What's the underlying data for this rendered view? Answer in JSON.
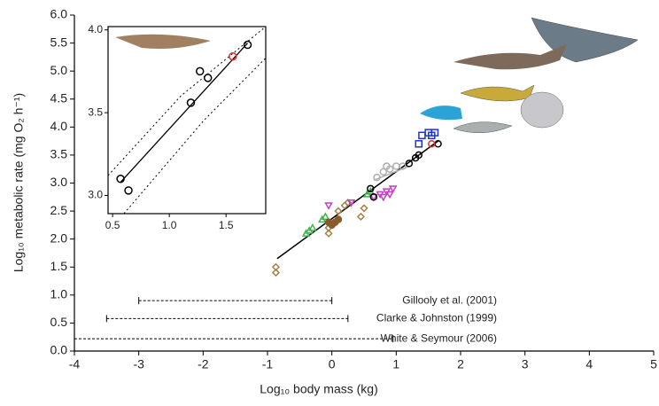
{
  "chart_data": {
    "type": "scatter",
    "x_label": "Log₁₀ body mass (kg)",
    "y_label": "Log₁₀ metabolic rate (mg O₂ h⁻¹)",
    "xlim": [
      -4,
      5
    ],
    "ylim": [
      0,
      6
    ],
    "xticks": [
      -4,
      -3,
      -2,
      -1,
      0,
      1,
      2,
      3,
      4,
      5
    ],
    "yticks": [
      {
        "value": 0,
        "label": "0.0"
      },
      {
        "value": 0.5,
        "label": "0.5"
      },
      {
        "value": 1,
        "label": "1.0"
      },
      {
        "value": 1.5,
        "label": "1.5"
      },
      {
        "value": 2,
        "label": "2.0"
      },
      {
        "value": 2.5,
        "label": "2.5"
      },
      {
        "value": 3,
        "label": "3.0"
      },
      {
        "value": 3.5,
        "label": "3.5"
      },
      {
        "value": 4,
        "label": "4.0"
      },
      {
        "value": 4.5,
        "label": "4.5"
      },
      {
        "value": 5,
        "label": "5.0"
      },
      {
        "value": 5.5,
        "label": "5.5"
      },
      {
        "value": 6,
        "label": "6.0"
      }
    ],
    "series": [
      {
        "marker": "diamond",
        "color": "#a0824a",
        "filled": false,
        "x": [
          -0.87,
          -0.87,
          -0.05,
          -0.05,
          0.1,
          0.2,
          0.25,
          0.45,
          0.5
        ],
        "y": [
          1.4,
          1.5,
          2.1,
          2.2,
          2.5,
          2.6,
          2.65,
          2.4,
          2.55
        ]
      },
      {
        "marker": "triangle-up",
        "color": "#3cb84a",
        "filled": false,
        "x": [
          -0.4,
          -0.35,
          -0.3,
          -0.15,
          -0.1,
          0.55,
          0.6
        ],
        "y": [
          2.1,
          2.15,
          2.2,
          2.35,
          2.4,
          2.8,
          2.85
        ]
      },
      {
        "marker": "circle",
        "color": "#8b5a2b",
        "filled": true,
        "x": [
          -0.05,
          0.0,
          0.05,
          0.1
        ],
        "y": [
          2.3,
          2.25,
          2.3,
          2.35
        ]
      },
      {
        "marker": "triangle-down",
        "color": "#c040c0",
        "filled": false,
        "x": [
          -0.05,
          0.3,
          0.65,
          0.75,
          0.8,
          0.85,
          0.9,
          0.95
        ],
        "y": [
          2.6,
          2.65,
          2.75,
          2.8,
          2.75,
          2.85,
          2.8,
          2.9
        ]
      },
      {
        "marker": "circle",
        "color": "#b0b0b0",
        "filled": false,
        "x": [
          0.7,
          0.8,
          0.85,
          0.9,
          1.0,
          1.1
        ],
        "y": [
          3.1,
          3.2,
          3.3,
          3.25,
          3.3,
          3.3
        ]
      },
      {
        "marker": "circle",
        "color": "#000000",
        "filled": false,
        "x": [
          0.6,
          0.65,
          1.2,
          1.3,
          1.35,
          1.65
        ],
        "y": [
          2.9,
          2.75,
          3.35,
          3.45,
          3.5,
          3.7
        ]
      },
      {
        "marker": "square",
        "color": "#2233cc",
        "filled": false,
        "x": [
          1.35,
          1.4,
          1.5,
          1.55,
          1.6
        ],
        "y": [
          3.7,
          3.85,
          3.9,
          3.85,
          3.9
        ]
      },
      {
        "marker": "circle",
        "color": "#e03030",
        "filled": false,
        "x": [
          1.55
        ],
        "y": [
          3.7
        ]
      }
    ],
    "lines": [
      {
        "color": "#000000",
        "x": [
          -0.85,
          1.65
        ],
        "y": [
          1.65,
          3.75
        ]
      },
      {
        "color": "#b0b0b0",
        "x": [
          0.65,
          1.2
        ],
        "y": [
          3.05,
          3.3
        ]
      }
    ],
    "ranges": [
      {
        "label": "Gillooly et al. (2001)",
        "from": -3,
        "to": 0,
        "y": 0.9
      },
      {
        "label": "Clarke & Johnston (1999)",
        "from": -3.5,
        "to": 0.25,
        "y": 0.58
      },
      {
        "label": "White & Seymour (2006)",
        "from": -4,
        "to": 0.95,
        "y": 0.22
      }
    ],
    "inset": {
      "xlim": [
        0.46,
        1.85
      ],
      "ylim": [
        2.89,
        4.02
      ],
      "xticks": [
        0.5,
        {
          "value": 1,
          "label": "1.0"
        },
        1.5
      ],
      "yticks": [
        {
          "value": 3,
          "label": "3.0"
        },
        3.5,
        {
          "value": 4,
          "label": "4.0"
        }
      ],
      "series": [
        {
          "marker": "circle",
          "color": "#000000",
          "filled": false,
          "x": [
            0.57,
            0.64,
            1.19,
            1.27,
            1.34,
            1.69
          ],
          "y": [
            3.1,
            3.03,
            3.56,
            3.75,
            3.71,
            3.91
          ]
        },
        {
          "marker": "circle",
          "color": "#e03030",
          "filled": false,
          "x": [
            1.56
          ],
          "y": [
            3.84
          ]
        }
      ],
      "lines": [
        {
          "color": "#000000",
          "dash": false,
          "x": [
            0.57,
            1.69
          ],
          "y": [
            3.08,
            3.92
          ]
        },
        {
          "color": "#000000",
          "dash": true,
          "x": [
            0.46,
            1.1,
            1.85
          ],
          "y": [
            3.12,
            3.6,
            4.02
          ]
        },
        {
          "color": "#000000",
          "dash": true,
          "x": [
            0.6,
            1.3,
            1.85
          ],
          "y": [
            2.89,
            3.45,
            3.83
          ]
        }
      ]
    }
  }
}
